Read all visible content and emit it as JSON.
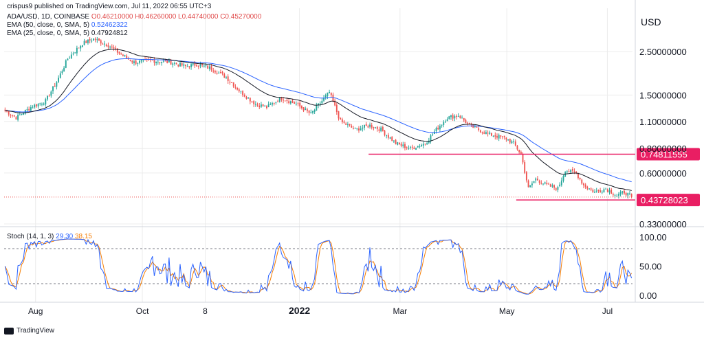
{
  "header": {
    "publisher": "crispus9 published on TradingView.com, Jul 11, 2022 06:55 UTC+3",
    "legend1_prefix": "ADA/USD, 1D, COINBASE",
    "legend1_values": "O0.46210000 H0.46260000 L0.44740000 C0.45270000",
    "legend2_prefix": "EMA (50, close, 0, SMA, 5)",
    "legend2_value": "0.52462322",
    "legend3_prefix": "EMA (25, close, 0, SMA, 5)",
    "legend3_value": "0.47924812"
  },
  "stoch_legend": {
    "prefix": "Stoch (14, 1, 3)",
    "k": "29.30",
    "d": "38.15"
  },
  "currency": "USD",
  "watermark": "TradingView",
  "colors": {
    "up": "#26a69a",
    "down": "#ef5350",
    "ema50": "#2962ff",
    "ema25": "#131722",
    "hline": "#e91e63",
    "stoch_k": "#2962ff",
    "stoch_d": "#f57c00",
    "grid": "#ececec"
  },
  "chart_data": {
    "type": "candlestick",
    "symbol": "ADA/USD",
    "timeframe": "1D",
    "exchange": "COINBASE",
    "y_axis": {
      "scale": "log",
      "ticks": [
        2.5,
        1.5,
        1.1,
        0.8,
        0.6,
        0.33
      ],
      "tick_labels": [
        "2.50000000",
        "1.50000000",
        "1.10000000",
        "0.80000000",
        "0.60000000",
        "0.33000000"
      ]
    },
    "x_axis": {
      "ticks": [
        "Aug",
        "Oct",
        "8",
        "2022",
        "Mar",
        "May",
        "Jul"
      ]
    },
    "price_anchors": [
      {
        "i": 0,
        "p": 1.25
      },
      {
        "i": 6,
        "p": 1.15
      },
      {
        "i": 14,
        "p": 1.3
      },
      {
        "i": 22,
        "p": 1.4
      },
      {
        "i": 28,
        "p": 1.75
      },
      {
        "i": 34,
        "p": 2.3
      },
      {
        "i": 42,
        "p": 2.75
      },
      {
        "i": 48,
        "p": 2.9
      },
      {
        "i": 56,
        "p": 2.7
      },
      {
        "i": 62,
        "p": 2.45
      },
      {
        "i": 70,
        "p": 2.2
      },
      {
        "i": 80,
        "p": 2.25
      },
      {
        "i": 90,
        "p": 2.2
      },
      {
        "i": 98,
        "p": 2.1
      },
      {
        "i": 104,
        "p": 2.15
      },
      {
        "i": 112,
        "p": 2.05
      },
      {
        "i": 120,
        "p": 1.85
      },
      {
        "i": 128,
        "p": 1.55
      },
      {
        "i": 136,
        "p": 1.35
      },
      {
        "i": 142,
        "p": 1.3
      },
      {
        "i": 150,
        "p": 1.45
      },
      {
        "i": 158,
        "p": 1.35
      },
      {
        "i": 166,
        "p": 1.2
      },
      {
        "i": 172,
        "p": 1.4
      },
      {
        "i": 176,
        "p": 1.55
      },
      {
        "i": 182,
        "p": 1.1
      },
      {
        "i": 190,
        "p": 1.0
      },
      {
        "i": 198,
        "p": 1.05
      },
      {
        "i": 204,
        "p": 1.0
      },
      {
        "i": 212,
        "p": 0.85
      },
      {
        "i": 220,
        "p": 0.8
      },
      {
        "i": 228,
        "p": 0.85
      },
      {
        "i": 234,
        "p": 1.0
      },
      {
        "i": 240,
        "p": 1.15
      },
      {
        "i": 246,
        "p": 1.18
      },
      {
        "i": 252,
        "p": 1.05
      },
      {
        "i": 262,
        "p": 0.95
      },
      {
        "i": 272,
        "p": 0.9
      },
      {
        "i": 276,
        "p": 0.85
      },
      {
        "i": 280,
        "p": 0.75
      },
      {
        "i": 284,
        "p": 0.5
      },
      {
        "i": 288,
        "p": 0.56
      },
      {
        "i": 294,
        "p": 0.52
      },
      {
        "i": 300,
        "p": 0.5
      },
      {
        "i": 304,
        "p": 0.62
      },
      {
        "i": 310,
        "p": 0.6
      },
      {
        "i": 314,
        "p": 0.52
      },
      {
        "i": 320,
        "p": 0.48
      },
      {
        "i": 326,
        "p": 0.5
      },
      {
        "i": 332,
        "p": 0.46
      },
      {
        "i": 336,
        "p": 0.48
      },
      {
        "i": 340,
        "p": 0.455
      }
    ],
    "ema50_last": 0.52462322,
    "ema25_last": 0.47924812,
    "horizontal_lines": [
      {
        "value": 0.74811555,
        "label": "0.74811555"
      },
      {
        "value": 0.43728023,
        "label": "0.43728023"
      }
    ],
    "last_price_dotted": 0.4527,
    "stochastic": {
      "params": "14, 1, 3",
      "k_last": 29.3,
      "d_last": 38.15,
      "ticks": [
        100.0,
        50.0,
        0.0
      ],
      "tick_labels": [
        "100.00",
        "50.00",
        "0.00"
      ],
      "band_levels": [
        80,
        20
      ]
    }
  }
}
